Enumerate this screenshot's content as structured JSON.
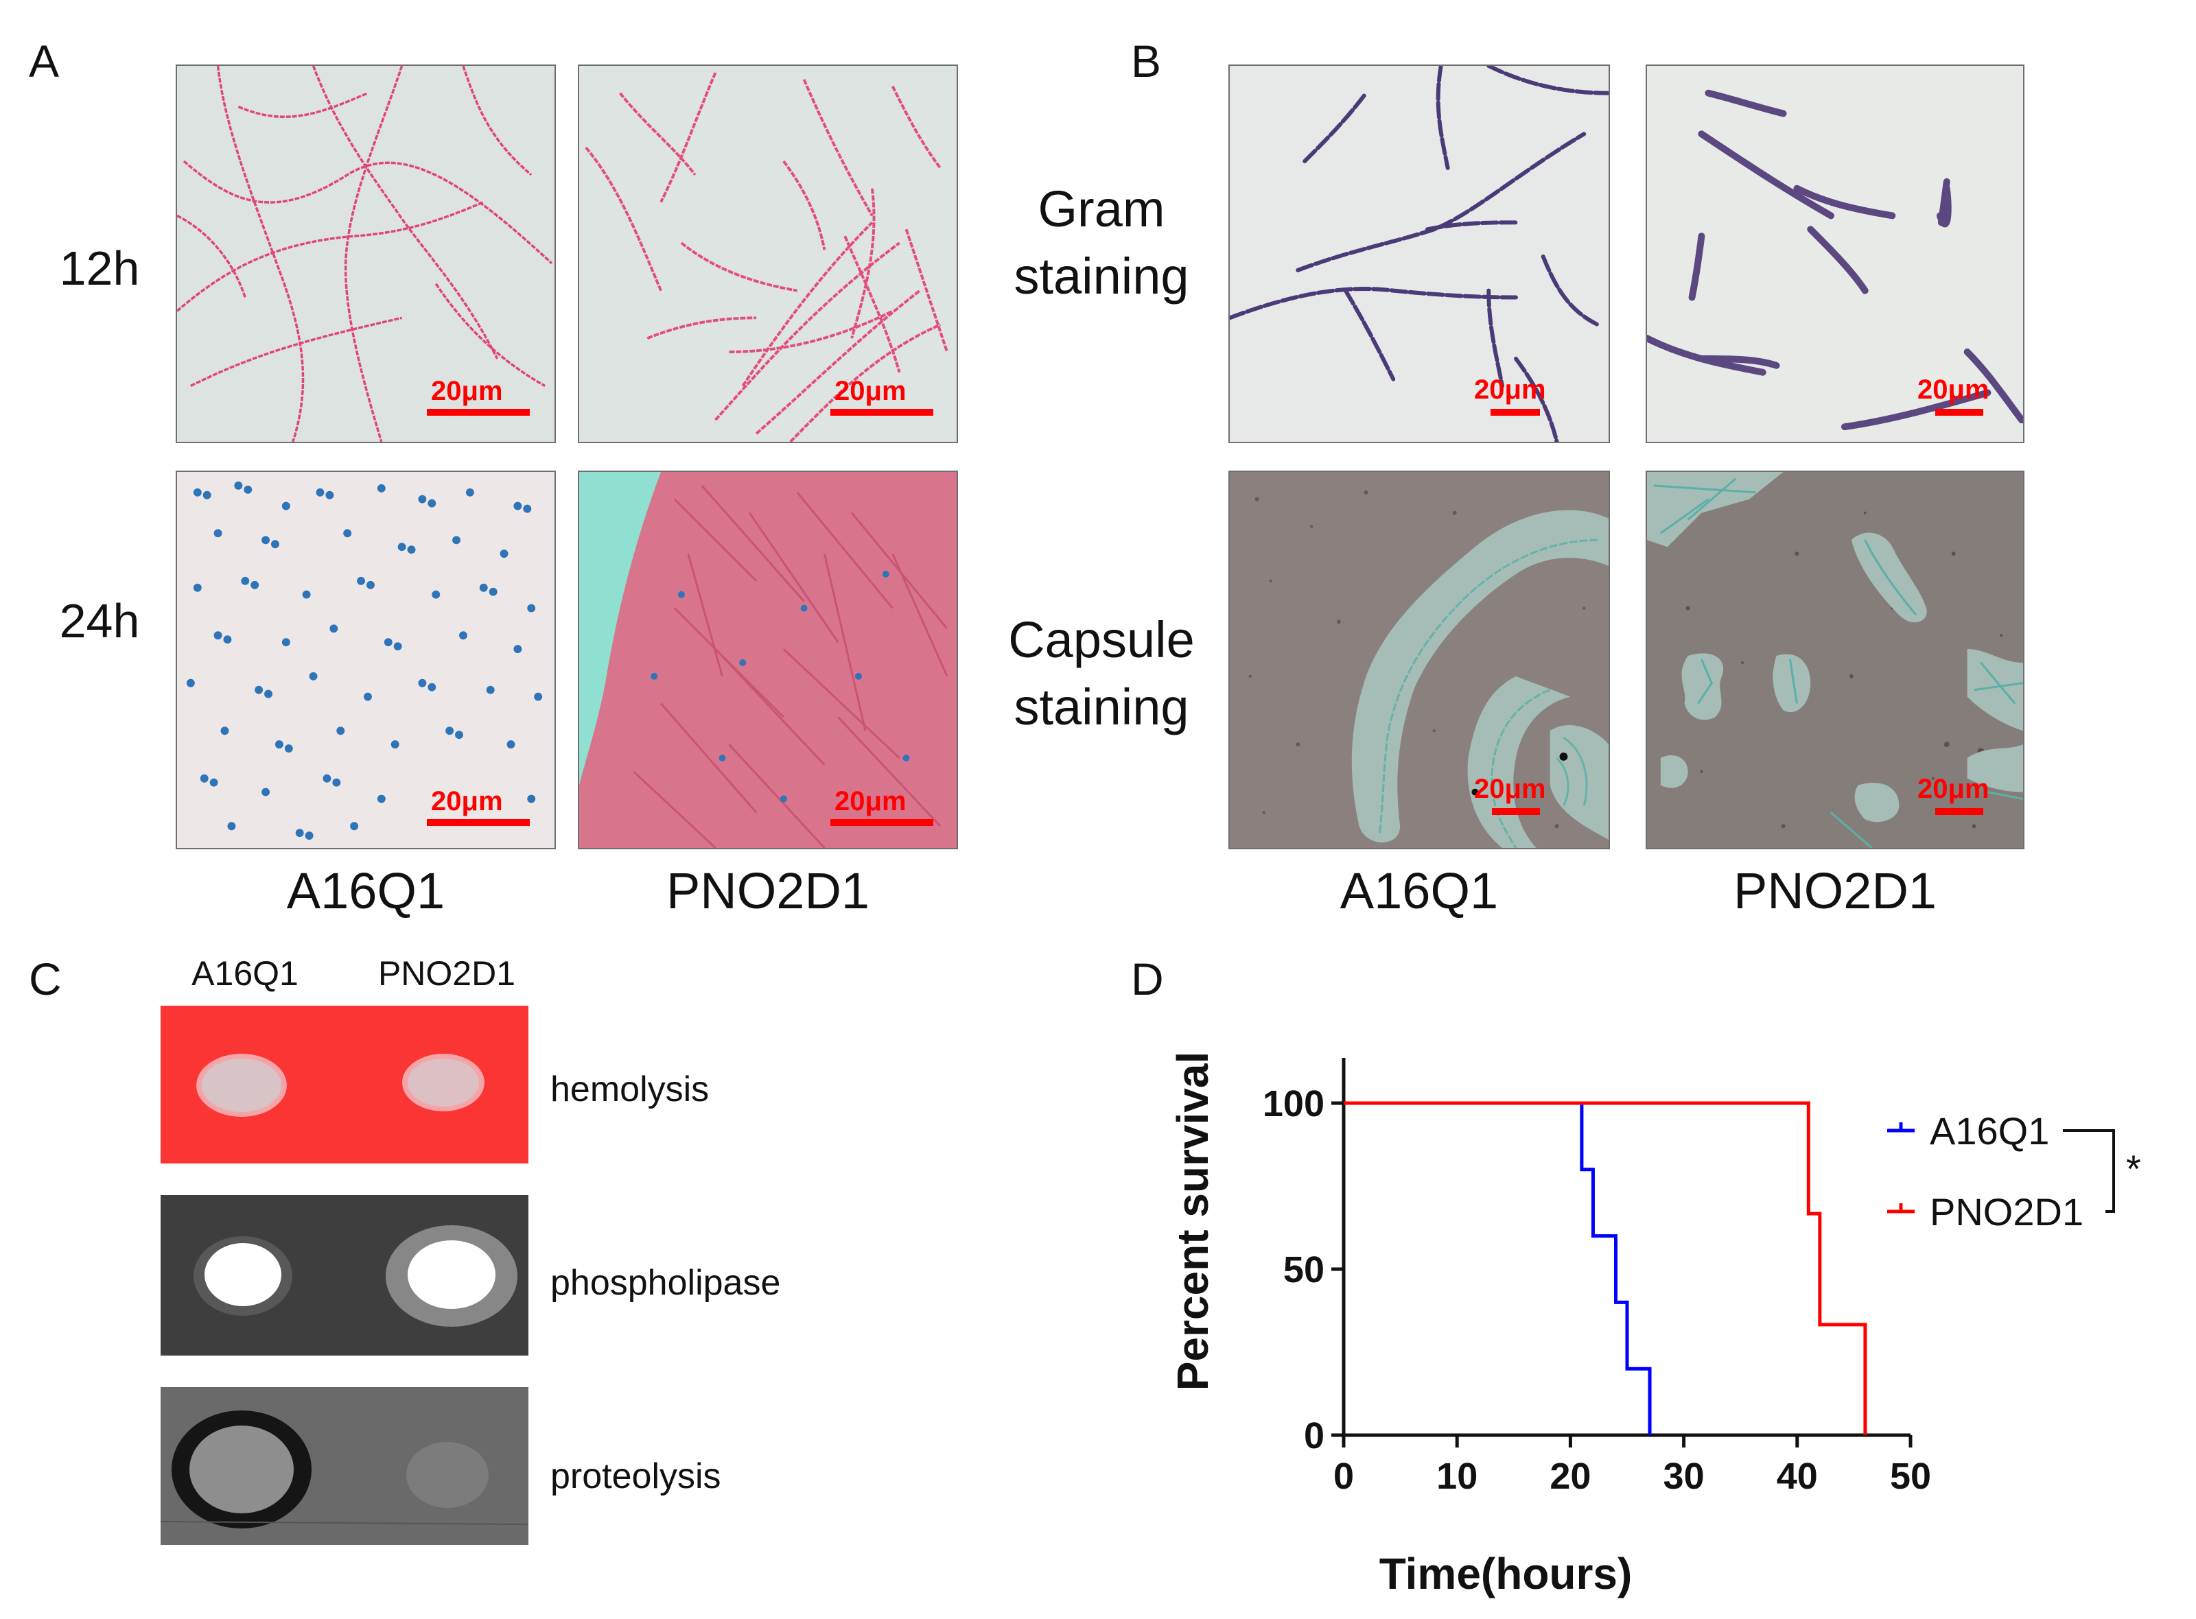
{
  "panels": {
    "a": "A",
    "b": "B",
    "c": "C",
    "d": "D"
  },
  "panel_a": {
    "rows": [
      "12h",
      "24h"
    ],
    "columns": [
      "A16Q1",
      "PNO2D1"
    ],
    "scale_bar": "20μm"
  },
  "panel_b": {
    "rows": [
      [
        "Gram",
        "staining"
      ],
      [
        "Capsule",
        "staining"
      ]
    ],
    "columns": [
      "A16Q1",
      "PNO2D1"
    ],
    "scale_bar": "20μm"
  },
  "panel_c": {
    "columns": [
      "A16Q1",
      "PNO2D1"
    ],
    "assays": [
      "hemolysis",
      "phospholipase",
      "proteolysis"
    ]
  },
  "colors": {
    "scale_bar": "#ff0000",
    "A16Q1": "#0000ff",
    "PNO2D1": "#ff0000",
    "blood_agar": "#fb3434"
  },
  "chart_data": {
    "type": "line",
    "xlabel": "Time(hours)",
    "ylabel": "Percent survival",
    "xlim": [
      0,
      50
    ],
    "ylim": [
      0,
      100
    ],
    "xticks": [
      0,
      10,
      20,
      30,
      40,
      50
    ],
    "yticks": [
      0,
      50,
      100
    ],
    "grid": false,
    "legend_position": "right",
    "significance": "*",
    "series": [
      {
        "name": "A16Q1",
        "color": "#0000ff",
        "x": [
          0,
          21,
          22,
          24,
          25,
          27
        ],
        "y": [
          100,
          80,
          60,
          40,
          20,
          0
        ]
      },
      {
        "name": "PNO2D1",
        "color": "#ff0000",
        "x": [
          0,
          41,
          42,
          46
        ],
        "y": [
          100,
          66.7,
          33.3,
          0
        ]
      }
    ]
  }
}
